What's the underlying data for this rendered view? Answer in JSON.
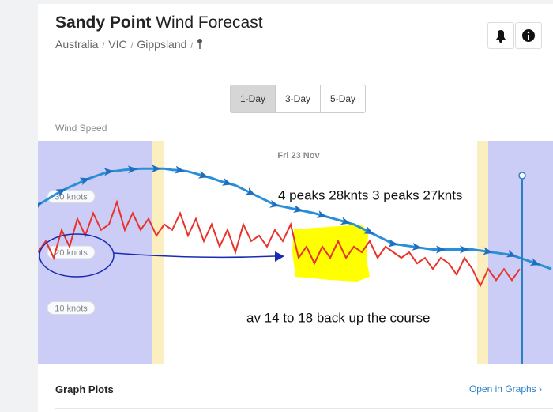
{
  "header": {
    "title_bold": "Sandy Point",
    "title_rest": "Wind Forecast",
    "breadcrumbs": [
      "Australia",
      "VIC",
      "Gippsland"
    ],
    "separator": "/"
  },
  "tabs": [
    "1-Day",
    "3-Day",
    "5-Day"
  ],
  "section_label": "Wind Speed",
  "chart_data": {
    "type": "line",
    "date_label": "Fri 23 Nov",
    "ylim": [
      0,
      40
    ],
    "yticks": [
      {
        "value": 10,
        "label": "10 knots"
      },
      {
        "value": 20,
        "label": "20 knots"
      },
      {
        "value": 30,
        "label": "30 knots"
      }
    ],
    "series": [
      {
        "color": "#e8322a",
        "values": [
          20,
          22,
          19,
          24,
          21,
          26,
          23,
          27,
          24,
          25,
          29,
          24,
          27,
          24,
          26,
          23,
          25,
          24,
          27,
          23,
          26,
          22,
          25,
          21,
          24,
          20,
          25,
          22,
          23,
          21,
          24,
          22,
          25,
          19,
          21,
          18,
          21,
          19,
          22,
          19,
          21,
          20,
          22,
          19,
          21,
          20,
          19,
          20,
          18,
          19,
          17,
          19,
          18,
          16,
          19,
          17,
          14,
          17,
          15,
          17,
          15,
          17,
          null,
          null,
          null,
          null
        ]
      },
      {
        "color": "#2a8fd6",
        "values": [
          28.5,
          29.3,
          30.2,
          31,
          31.7,
          32.3,
          33,
          33.5,
          34,
          34.5,
          34.6,
          34.8,
          34.9,
          35,
          35,
          35,
          35,
          34.8,
          34.7,
          34.5,
          34.1,
          33.7,
          33.3,
          32.8,
          32.4,
          32,
          31.3,
          30.6,
          29.9,
          29.2,
          28.5,
          28.2,
          27.9,
          27.6,
          27.3,
          27,
          26.6,
          26.2,
          25.8,
          25.4,
          25,
          24.3,
          23.6,
          22.9,
          22.2,
          21.5,
          21.3,
          21.1,
          20.9,
          20.7,
          20.5,
          20.5,
          20.5,
          20.5,
          20.5,
          20.5,
          20.3,
          20.1,
          19.9,
          19.7,
          19.5,
          19,
          18.5,
          18,
          17.5,
          17
        ]
      }
    ],
    "annotations": [
      "4 peaks 28knts 3 peaks 27knts",
      "av 14 to 18 back up the course"
    ]
  },
  "footer": {
    "title": "Graph Plots",
    "link": "Open in Graphs ›"
  }
}
